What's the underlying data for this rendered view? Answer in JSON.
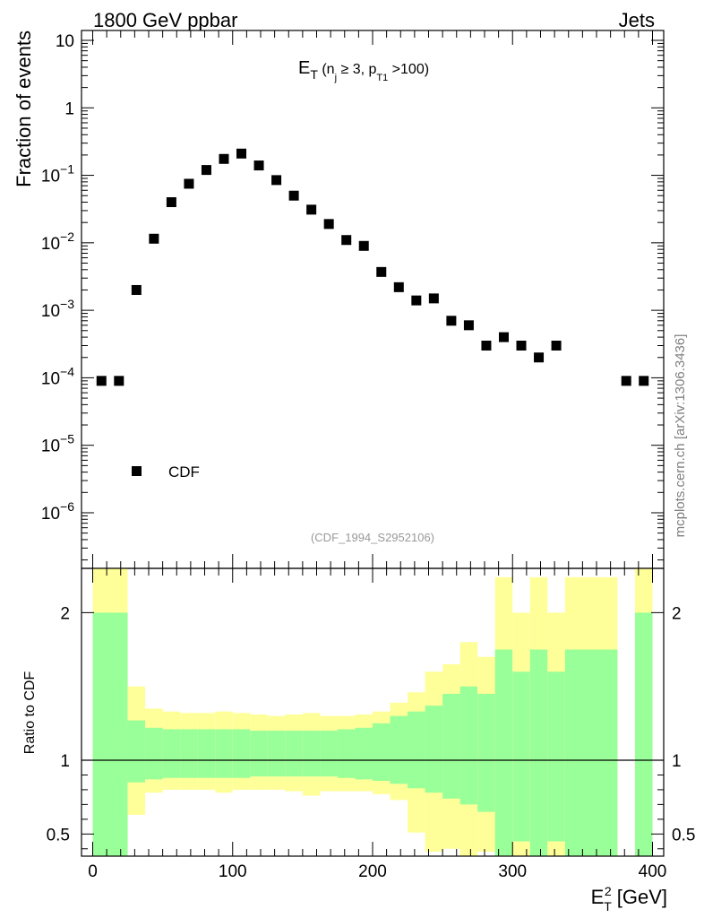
{
  "header": {
    "left_title": "1800 GeV ppbar",
    "right_title": "Jets"
  },
  "watermark": "mcplots.cern.ch [arXiv:1306.3436]",
  "chart_data": [
    {
      "type": "scatter",
      "panel": "main",
      "title": "E_T (n_j ≥ 3, p_T1 > 100)",
      "title_parts": {
        "main": "E",
        "sub1": "T",
        "paren_open": " (n",
        "sub2": "j",
        "mid": " ≥ 3, p",
        "sub3": "T1",
        "tail": " >100)"
      },
      "ylabel": "Fraction of events",
      "yscale": "log",
      "ylim": [
        1.5e-07,
        14
      ],
      "xlim": [
        -8,
        408
      ],
      "y_ticks": [
        {
          "value": 10,
          "mantissa": "10",
          "exp": ""
        },
        {
          "value": 1,
          "mantissa": "1",
          "exp": ""
        },
        {
          "value": 0.1,
          "mantissa": "10",
          "exp": "−1"
        },
        {
          "value": 0.01,
          "mantissa": "10",
          "exp": "−2"
        },
        {
          "value": 0.001,
          "mantissa": "10",
          "exp": "−3"
        },
        {
          "value": 0.0001,
          "mantissa": "10",
          "exp": "−4"
        },
        {
          "value": 1e-05,
          "mantissa": "10",
          "exp": "−5"
        },
        {
          "value": 1e-06,
          "mantissa": "10",
          "exp": "−6"
        }
      ],
      "legend": {
        "label": "CDF",
        "position": "lower-left"
      },
      "annotation": "(CDF_1994_S2952106)",
      "series": [
        {
          "name": "CDF",
          "marker": "square",
          "x": [
            6.25,
            18.75,
            31.25,
            43.75,
            56.25,
            68.75,
            81.25,
            93.75,
            106.25,
            118.75,
            131.25,
            143.75,
            156.25,
            168.75,
            181.25,
            193.75,
            206.25,
            218.75,
            231.25,
            243.75,
            256.25,
            268.75,
            281.25,
            293.75,
            306.25,
            318.75,
            331.25,
            381.25,
            393.75
          ],
          "y": [
            9e-05,
            9e-05,
            0.002,
            0.0115,
            0.04,
            0.075,
            0.12,
            0.175,
            0.21,
            0.14,
            0.085,
            0.05,
            0.031,
            0.019,
            0.011,
            0.009,
            0.0037,
            0.0022,
            0.0014,
            0.0015,
            0.0007,
            0.0006,
            0.0003,
            0.0004,
            0.0003,
            0.0002,
            0.0003,
            9e-05,
            9e-05
          ]
        }
      ]
    },
    {
      "type": "area",
      "panel": "ratio",
      "ylabel": "Ratio to CDF",
      "xlabel": "E_T^2 [GeV]",
      "xlabel_parts": {
        "main": "E",
        "sup": "2",
        "sub": "T",
        "unit": " [GeV]"
      },
      "ylim": [
        0.35,
        2.3
      ],
      "xlim": [
        -8,
        408
      ],
      "reference_line": 1,
      "y_ticks": [
        2,
        1,
        0.5
      ],
      "y_tick_labels": [
        "2",
        "1",
        "0.5"
      ],
      "x_ticks": [
        0,
        100,
        200,
        300,
        400
      ],
      "x_tick_labels": [
        "0",
        "100",
        "200",
        "300",
        "400"
      ],
      "band_colors": {
        "inner": "#99ff99",
        "outer": "#ffff99"
      },
      "bins": {
        "edges": [
          0,
          12.5,
          25,
          37.5,
          50,
          62.5,
          75,
          87.5,
          100,
          112.5,
          125,
          137.5,
          150,
          162.5,
          175,
          187.5,
          200,
          212.5,
          225,
          237.5,
          250,
          262.5,
          275,
          287.5,
          300,
          312.5,
          325,
          337.5,
          375,
          387.5,
          400
        ],
        "inner_hi": [
          2.0,
          2.0,
          1.27,
          1.22,
          1.21,
          1.21,
          1.21,
          1.21,
          1.21,
          1.2,
          1.2,
          1.2,
          1.2,
          1.2,
          1.21,
          1.22,
          1.25,
          1.3,
          1.33,
          1.37,
          1.45,
          1.5,
          1.45,
          1.75,
          1.6,
          1.75,
          1.6,
          1.75,
          null,
          2.0,
          2.0
        ],
        "inner_lo": [
          0.35,
          0.35,
          0.85,
          0.87,
          0.88,
          0.88,
          0.88,
          0.88,
          0.88,
          0.89,
          0.89,
          0.89,
          0.89,
          0.89,
          0.88,
          0.87,
          0.86,
          0.84,
          0.81,
          0.78,
          0.74,
          0.7,
          0.65,
          0.35,
          0.45,
          0.35,
          0.45,
          0.35,
          null,
          0.35,
          0.35
        ],
        "outer_hi": [
          2.3,
          2.3,
          1.5,
          1.35,
          1.33,
          1.32,
          1.32,
          1.33,
          1.32,
          1.31,
          1.3,
          1.31,
          1.32,
          1.3,
          1.3,
          1.31,
          1.33,
          1.39,
          1.46,
          1.6,
          1.65,
          1.8,
          1.7,
          2.24,
          2.0,
          2.24,
          2.0,
          2.24,
          null,
          2.3,
          2.3
        ],
        "outer_lo": [
          0.35,
          0.35,
          0.63,
          0.78,
          0.8,
          0.8,
          0.8,
          0.78,
          0.8,
          0.8,
          0.8,
          0.79,
          0.76,
          0.79,
          0.79,
          0.79,
          0.77,
          0.73,
          0.51,
          0.38,
          0.4,
          0.35,
          0.38,
          0.35,
          0.35,
          0.35,
          0.35,
          0.35,
          null,
          0.35,
          0.35
        ]
      }
    }
  ]
}
